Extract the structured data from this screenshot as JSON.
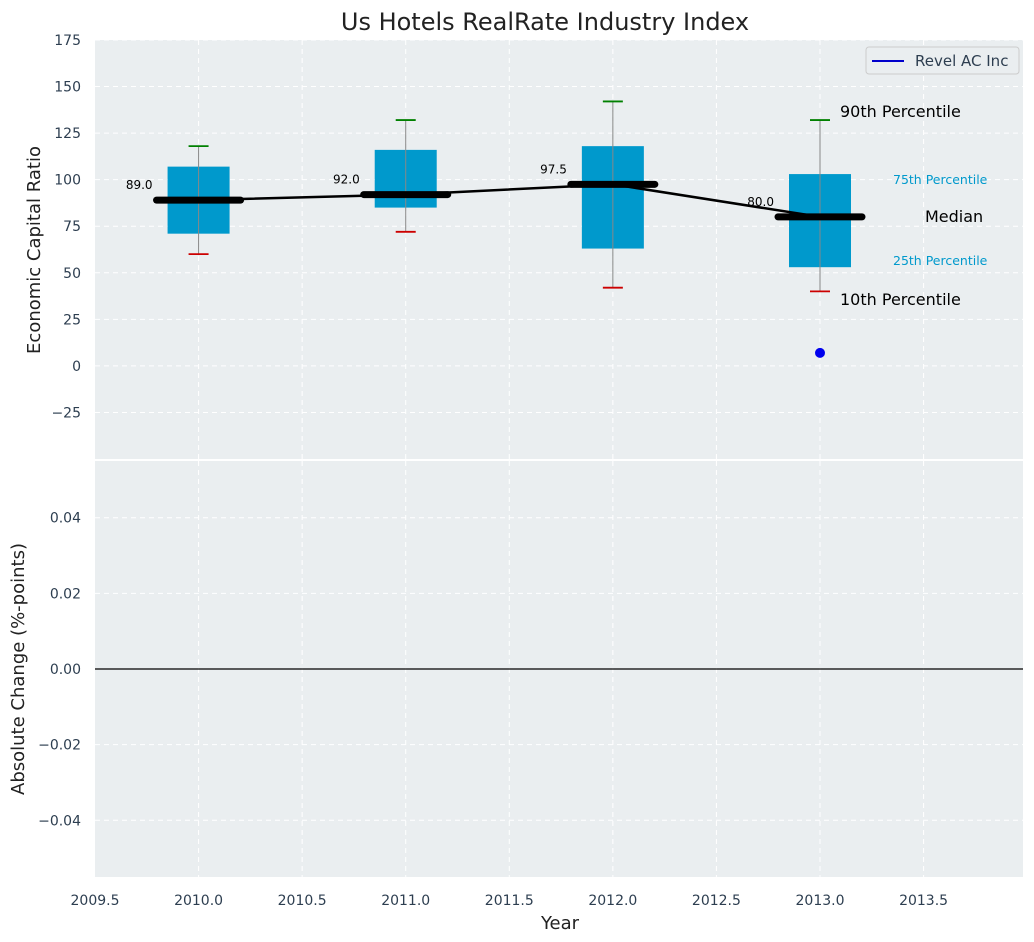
{
  "chart_data": {
    "title": "Us Hotels RealRate Industry Index",
    "xlabel": "Year",
    "top_panel": {
      "type": "box",
      "ylabel": "Economic Capital Ratio",
      "ylim": [
        -50,
        175
      ],
      "yticks": [
        -25,
        0,
        25,
        50,
        75,
        100,
        125,
        150,
        175
      ],
      "ytick_labels": [
        "−25",
        "0",
        "25",
        "50",
        "75",
        "100",
        "125",
        "150",
        "175"
      ],
      "boxes": [
        {
          "year": 2010,
          "p10": 60,
          "p25": 71,
          "median": 89.0,
          "p75": 107,
          "p90": 118,
          "median_label": "89.0"
        },
        {
          "year": 2011,
          "p10": 72,
          "p25": 85,
          "median": 92.0,
          "p75": 116,
          "p90": 132,
          "median_label": "92.0"
        },
        {
          "year": 2012,
          "p10": 42,
          "p25": 63,
          "median": 97.5,
          "p75": 118,
          "p90": 142,
          "median_label": "97.5"
        },
        {
          "year": 2013,
          "p10": 40,
          "p25": 53,
          "median": 80.0,
          "p75": 103,
          "p90": 132,
          "median_label": "80.0"
        }
      ],
      "company_points": [
        {
          "year": 2013,
          "value": 7
        }
      ],
      "annotations": {
        "p90": "90th Percentile",
        "p75": "75th Percentile",
        "median": "Median",
        "p25": "25th Percentile",
        "p10": "10th Percentile"
      },
      "legend": {
        "position": "top-right",
        "entries": [
          {
            "label": "Revel AC Inc",
            "color": "#0000cc"
          }
        ]
      }
    },
    "bottom_panel": {
      "type": "line",
      "ylabel": "Absolute Change (%-points)",
      "ylim": [
        -0.055,
        0.055
      ],
      "yticks": [
        -0.04,
        -0.02,
        0.0,
        0.02,
        0.04
      ],
      "ytick_labels": [
        "−0.04",
        "−0.02",
        "0.00",
        "0.02",
        "0.04"
      ],
      "zero_line": 0.0
    },
    "xlim": [
      2009.5,
      2013.98
    ],
    "xticks": [
      2009.5,
      2010.0,
      2010.5,
      2011.0,
      2011.5,
      2012.0,
      2012.5,
      2013.0,
      2013.5
    ],
    "xtick_labels": [
      "2009.5",
      "2010.0",
      "2010.5",
      "2011.0",
      "2011.5",
      "2012.0",
      "2012.5",
      "2013.0",
      "2013.5"
    ],
    "colors": {
      "background": "#eaeef0",
      "grid": "#ffffff",
      "box": "#0099cc",
      "median": "#000000",
      "whisker": "#888888",
      "cap_p90": "#008000",
      "cap_p10": "#cc0000",
      "company": "#0000ee",
      "legend_line": "#0000cc"
    }
  }
}
